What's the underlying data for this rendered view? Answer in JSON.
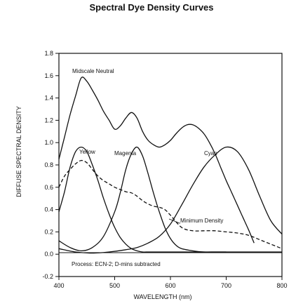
{
  "chart_data": {
    "type": "line",
    "title": "Spectral Dye Density Curves",
    "xlabel": "WAVELENGTH (nm)",
    "ylabel": "DIFFUSE SPECTRAL DENSITY",
    "xlim": [
      400,
      800
    ],
    "ylim": [
      -0.2,
      1.8
    ],
    "x_ticks": [
      "400",
      "500",
      "600",
      "700",
      "800"
    ],
    "y_ticks": [
      "-0.2",
      "0.0",
      "0.2",
      "0.4",
      "0.6",
      "0.8",
      "1.0",
      "1.2",
      "1.4",
      "1.6",
      "1.8"
    ],
    "grid": false,
    "annotations": {
      "midscale_neutral": "Midscale Neutral",
      "yellow": "Yellow",
      "magenta": "Magenta",
      "cyan": "Cyan",
      "minimum_density": "Minimum Density",
      "process_note": "Process: ECN-2; D-mins subtracted"
    },
    "series": [
      {
        "name": "Midscale Neutral",
        "style": "solid",
        "x": [
          400,
          410,
          420,
          430,
          440,
          450,
          460,
          470,
          480,
          490,
          500,
          510,
          520,
          530,
          540,
          550,
          560,
          570,
          580,
          590,
          600,
          610,
          620,
          630,
          640,
          650,
          660,
          670,
          680,
          690,
          700,
          710,
          720,
          730,
          740,
          750
        ],
        "y": [
          0.85,
          1.05,
          1.25,
          1.42,
          1.58,
          1.55,
          1.47,
          1.38,
          1.28,
          1.2,
          1.12,
          1.15,
          1.22,
          1.27,
          1.22,
          1.1,
          1.02,
          0.98,
          0.96,
          0.98,
          1.02,
          1.08,
          1.13,
          1.16,
          1.16,
          1.13,
          1.08,
          1.0,
          0.9,
          0.78,
          0.66,
          0.55,
          0.44,
          0.33,
          0.22,
          0.1
        ]
      },
      {
        "name": "Yellow",
        "style": "solid",
        "x": [
          400,
          410,
          420,
          430,
          440,
          450,
          460,
          470,
          480,
          490,
          500,
          510,
          520,
          530,
          540,
          550,
          560,
          570,
          580,
          590,
          600,
          620,
          640,
          660,
          680,
          700,
          740,
          800
        ],
        "y": [
          0.38,
          0.56,
          0.78,
          0.92,
          0.96,
          0.92,
          0.8,
          0.66,
          0.5,
          0.36,
          0.24,
          0.15,
          0.09,
          0.05,
          0.03,
          0.02,
          0.02,
          0.02,
          0.02,
          0.02,
          0.02,
          0.02,
          0.02,
          0.02,
          0.02,
          0.02,
          0.02,
          0.02
        ]
      },
      {
        "name": "Magenta",
        "style": "solid",
        "x": [
          400,
          420,
          440,
          460,
          480,
          500,
          510,
          520,
          530,
          540,
          550,
          560,
          570,
          580,
          590,
          600,
          610,
          620,
          640,
          660,
          680,
          700
        ],
        "y": [
          0.12,
          0.06,
          0.03,
          0.06,
          0.16,
          0.38,
          0.55,
          0.76,
          0.9,
          0.96,
          0.88,
          0.72,
          0.54,
          0.38,
          0.24,
          0.14,
          0.08,
          0.05,
          0.03,
          0.02,
          0.02,
          0.02
        ]
      },
      {
        "name": "Cyan",
        "style": "solid",
        "x": [
          400,
          430,
          460,
          490,
          520,
          540,
          560,
          580,
          600,
          620,
          640,
          660,
          680,
          700,
          720,
          740,
          760,
          780,
          800
        ],
        "y": [
          0.05,
          0.02,
          0.01,
          0.02,
          0.04,
          0.06,
          0.1,
          0.16,
          0.27,
          0.44,
          0.62,
          0.78,
          0.89,
          0.96,
          0.92,
          0.76,
          0.52,
          0.3,
          0.18
        ]
      },
      {
        "name": "Minimum Density",
        "style": "dashed",
        "x": [
          400,
          410,
          420,
          430,
          440,
          450,
          460,
          470,
          480,
          490,
          500,
          510,
          520,
          530,
          540,
          550,
          560,
          570,
          580,
          590,
          600,
          620,
          640,
          660,
          680,
          700,
          720,
          740,
          760,
          780,
          800
        ],
        "y": [
          0.6,
          0.7,
          0.76,
          0.81,
          0.84,
          0.82,
          0.76,
          0.7,
          0.66,
          0.63,
          0.6,
          0.58,
          0.56,
          0.55,
          0.52,
          0.48,
          0.45,
          0.43,
          0.42,
          0.4,
          0.35,
          0.24,
          0.21,
          0.21,
          0.21,
          0.2,
          0.19,
          0.17,
          0.13,
          0.09,
          0.05
        ]
      }
    ]
  }
}
